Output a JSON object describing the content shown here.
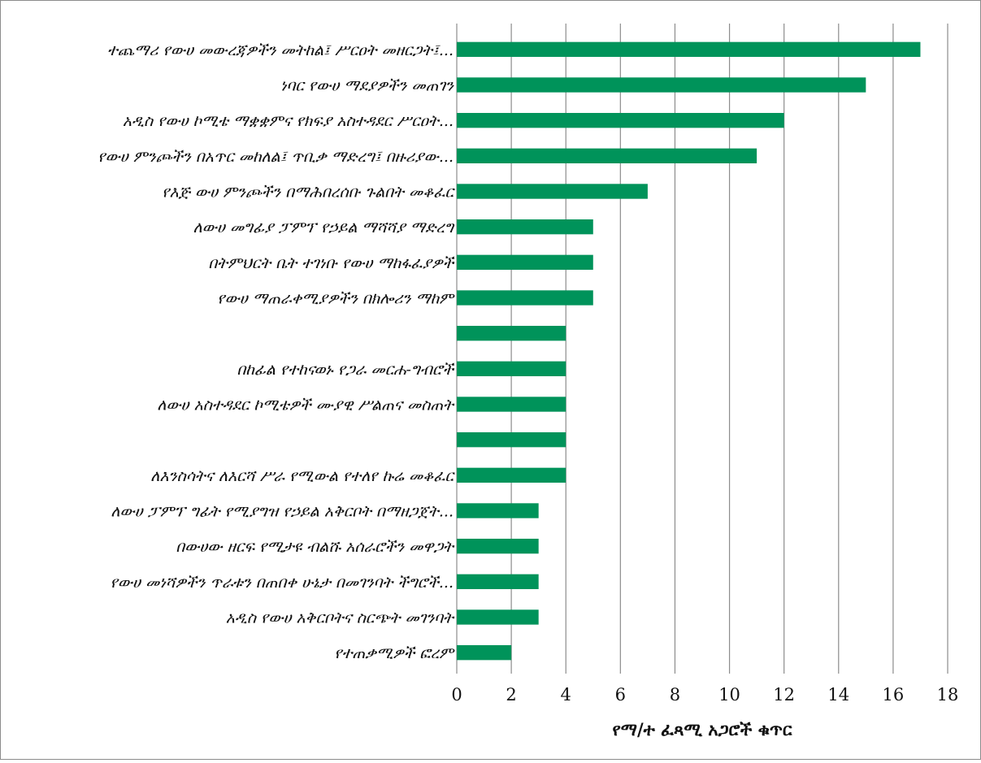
{
  "colors": {
    "bar": "#00935a",
    "grid": "#8c8c8c",
    "border": "#8c8c8c"
  },
  "chart_data": {
    "type": "bar",
    "orientation": "horizontal",
    "categories": [
      "ተጨማሪ የውሀ መውረጃዎችን መትከል፤ ሥርዐት መዘርጋት፤...",
      "ነባር የውሀ ማደያዎችን መጠገን",
      "አዲስ የውሀ ኮሚቴ ማቋቋምና የክፍያ አስተዳደር ሥርዐት...",
      "የውሀ ምንጮችን በአጥር መከለል፤ ጥቢቃ ማድረግ፤ በዙሪያው...",
      "የእጅ ውሀ ምንጮችን በማሕበረሰቡ ጉልበት መቆፈር",
      "ለውሀ መግፊያ ፓምፕ የኃይል ማሻሻያ ማድረግ",
      "በትምህርት ቤት ተገነቡ የውሀ ማከፋፈያዎች",
      "የውሀ ማጠራቀሚያዎችን በክሎሪን ማከም",
      "",
      "በከፊል የተከናወኑ የጋራ መርሐ-ግብሮች",
      "ለውሀ አስተዳደር ኮሚቴዎች ሙያዊ ሥልጠና መስጠት",
      "",
      "ለእንስሳትና ለእርሻ ሥራ የሚውል የተለየ ኩሬ መቆፈር",
      "ለውሀ ፓምፕ ግፊት የሚያግዝ የኃይል አቅርቦት በማዘጋጀት...",
      "በውሀው ዘርፍ የሚታዩ ብልሹ አሰራሮችን መዋጋት",
      "የውሀ መነሻዎችን ጥራቱን በጠበቀ ሁኔታ በመገንባት ችግሮች...",
      "አዲስ የውሀ አቅርቦትና ስርጭት መገንባት",
      "የተጠቃሚዎች ፎረም"
    ],
    "values": [
      17,
      15,
      12,
      11,
      7,
      5,
      5,
      5,
      4,
      4,
      4,
      4,
      4,
      3,
      3,
      3,
      3,
      2
    ],
    "xlabel": "የማ/ተ ፈጻሚ አጋሮች ቁጥር",
    "ylabel": "",
    "xlim": [
      0,
      18
    ],
    "x_ticks": [
      0,
      2,
      4,
      6,
      8,
      10,
      12,
      14,
      16,
      18
    ],
    "tick_labels": [
      "0",
      "2",
      "4",
      "6",
      "8",
      "10",
      "12",
      "14",
      "16",
      "18"
    ],
    "grid": true,
    "legend": false
  }
}
